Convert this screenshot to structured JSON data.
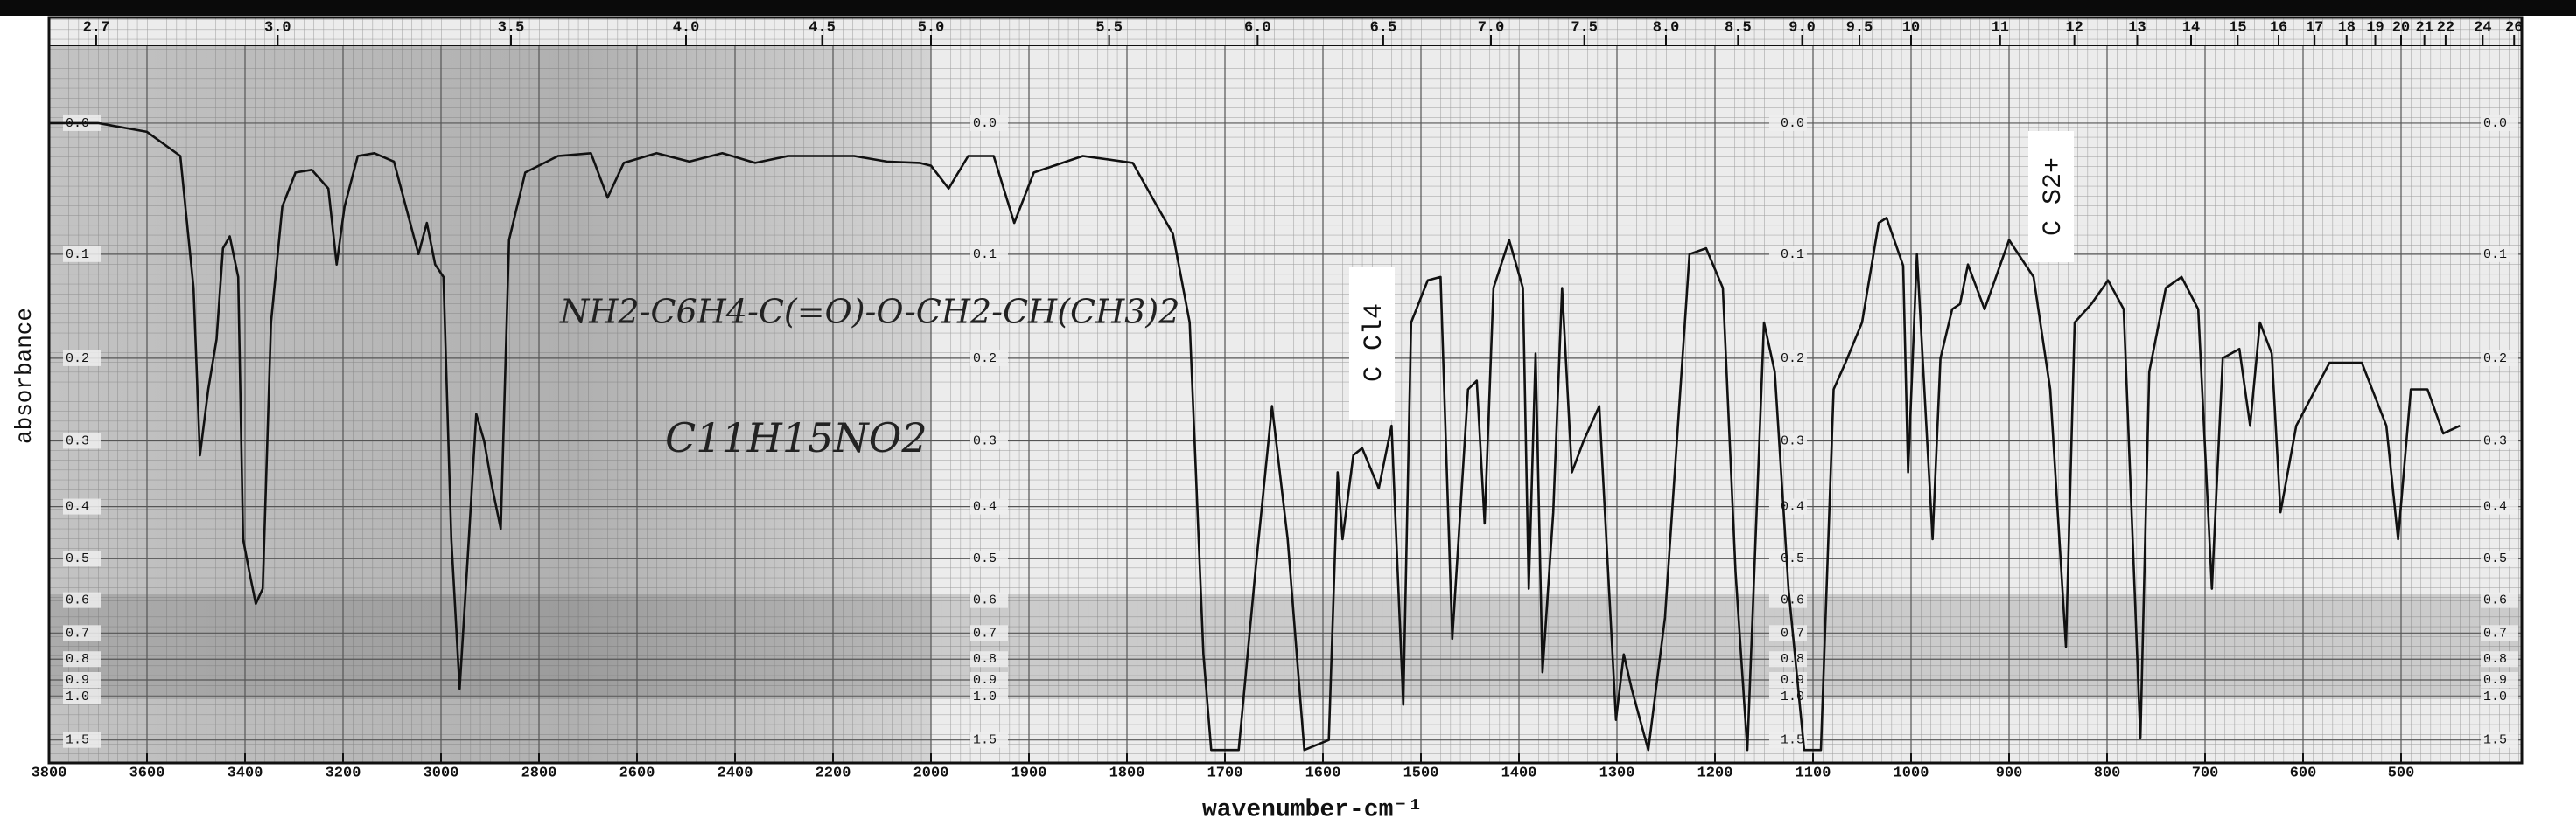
{
  "chart_data": {
    "type": "line",
    "x_label": "wavenumber-cm⁻¹",
    "y_label": "absorbance",
    "annotations": [
      "NH2-C6H4-C(=O)-O-CH2-CH(CH3)2",
      "C11H15NO2",
      "C Cl4",
      "C S2+"
    ],
    "xlim": [
      3800,
      380
    ],
    "xticks": [
      3800,
      3600,
      3400,
      3200,
      3000,
      2800,
      2600,
      2400,
      2200,
      2000,
      1900,
      1800,
      1700,
      1600,
      1500,
      1400,
      1300,
      1200,
      1100,
      1000,
      900,
      800,
      700,
      600,
      500
    ],
    "x2ticks": [
      2.7,
      {
        "value": 3,
        "label": "3.0"
      },
      3.5,
      {
        "value": 4,
        "label": "4.0"
      },
      4.5,
      {
        "value": 5,
        "label": "5.0"
      },
      5.5,
      {
        "value": 6,
        "label": "6.0"
      },
      6.5,
      {
        "value": 7,
        "label": "7.0"
      },
      7.5,
      {
        "value": 8,
        "label": "8.0"
      },
      8.5,
      {
        "value": 9,
        "label": "9.0"
      },
      9.5,
      10,
      11,
      12,
      13,
      14,
      15,
      16,
      17,
      18,
      19,
      20,
      21,
      22,
      24,
      26
    ],
    "ylim": [
      -0.05,
      3
    ],
    "yscale": "transmittance",
    "yticks": [
      {
        "value": 0,
        "label": "0.0"
      },
      0.1,
      0.2,
      0.3,
      0.4,
      0.5,
      0.6,
      0.7,
      0.8,
      0.9,
      {
        "value": 1,
        "label": "1.0"
      },
      1.5
    ],
    "grid": true,
    "color": "#111111",
    "x": [
      3800,
      3700,
      3600,
      3532,
      3505,
      3492,
      3475,
      3458,
      3445,
      3431,
      3414,
      3404,
      3391,
      3378,
      3364,
      3347,
      3324,
      3297,
      3264,
      3230,
      3213,
      3197,
      3170,
      3136,
      3096,
      3063,
      3046,
      3029,
      3012,
      2995,
      2979,
      2962,
      2945,
      2928,
      2912,
      2895,
      2878,
      2861,
      2828,
      2761,
      2694,
      2660,
      2627,
      2560,
      2493,
      2426,
      2359,
      2292,
      2224,
      2157,
      2090,
      2023,
      2000,
      1982,
      1962,
      1936,
      1915,
      1895,
      1845,
      1794,
      1769,
      1753,
      1736,
      1722,
      1714,
      1686,
      1669,
      1652,
      1636,
      1619,
      1594,
      1585,
      1580,
      1569,
      1560,
      1543,
      1530,
      1518,
      1510,
      1493,
      1480,
      1468,
      1452,
      1443,
      1435,
      1426,
      1410,
      1396,
      1390,
      1383,
      1376,
      1365,
      1356,
      1346,
      1334,
      1318,
      1301,
      1293,
      1285,
      1268,
      1251,
      1226,
      1209,
      1192,
      1179,
      1167,
      1150,
      1139,
      1125,
      1109,
      1092,
      1079,
      1067,
      1050,
      1033,
      1025,
      1008,
      1003,
      994,
      978,
      970,
      958,
      950,
      942,
      925,
      900,
      875,
      858,
      842,
      833,
      816,
      799,
      783,
      766,
      757,
      740,
      724,
      707,
      693,
      682,
      665,
      654,
      644,
      632,
      623,
      607,
      573,
      540,
      515,
      503,
      490,
      473,
      457,
      440
    ],
    "values": [
      0,
      0,
      0.006,
      0.023,
      0.13,
      0.32,
      0.235,
      0.18,
      0.095,
      0.085,
      0.12,
      0.46,
      0.53,
      0.61,
      0.57,
      0.163,
      0.061,
      0.035,
      0.033,
      0.047,
      0.109,
      0.061,
      0.023,
      0.021,
      0.027,
      0.074,
      0.1,
      0.074,
      0.109,
      0.12,
      0.46,
      0.95,
      0.49,
      0.265,
      0.3,
      0.37,
      0.44,
      0.088,
      0.035,
      0.023,
      0.021,
      0.054,
      0.028,
      0.021,
      0.027,
      0.021,
      0.028,
      0.023,
      0.023,
      0.023,
      0.027,
      0.028,
      0.03,
      0.047,
      0.023,
      0.023,
      0.074,
      0.035,
      0.023,
      0.028,
      0.061,
      0.083,
      0.163,
      0.78,
      1.8,
      1.8,
      0.53,
      0.255,
      0.46,
      1.8,
      1.5,
      0.345,
      0.46,
      0.32,
      0.31,
      0.37,
      0.28,
      1.06,
      0.163,
      0.123,
      0.12,
      0.72,
      0.235,
      0.225,
      0.43,
      0.13,
      0.088,
      0.13,
      0.57,
      0.195,
      0.86,
      0.41,
      0.13,
      0.345,
      0.3,
      0.255,
      1.2,
      0.78,
      0.95,
      1.8,
      0.65,
      0.1,
      0.095,
      0.13,
      0.53,
      1.8,
      0.163,
      0.215,
      0.57,
      1.8,
      1.8,
      0.235,
      0.205,
      0.163,
      0.074,
      0.07,
      0.11,
      0.345,
      0.1,
      0.46,
      0.2,
      0.15,
      0.145,
      0.109,
      0.15,
      0.088,
      0.12,
      0.235,
      0.75,
      0.163,
      0.145,
      0.123,
      0.15,
      1.47,
      0.215,
      0.13,
      0.12,
      0.15,
      0.57,
      0.2,
      0.19,
      0.28,
      0.163,
      0.195,
      0.41,
      0.28,
      0.205,
      0.205,
      0.28,
      0.46,
      0.235,
      0.235,
      0.29,
      0.28
    ]
  }
}
